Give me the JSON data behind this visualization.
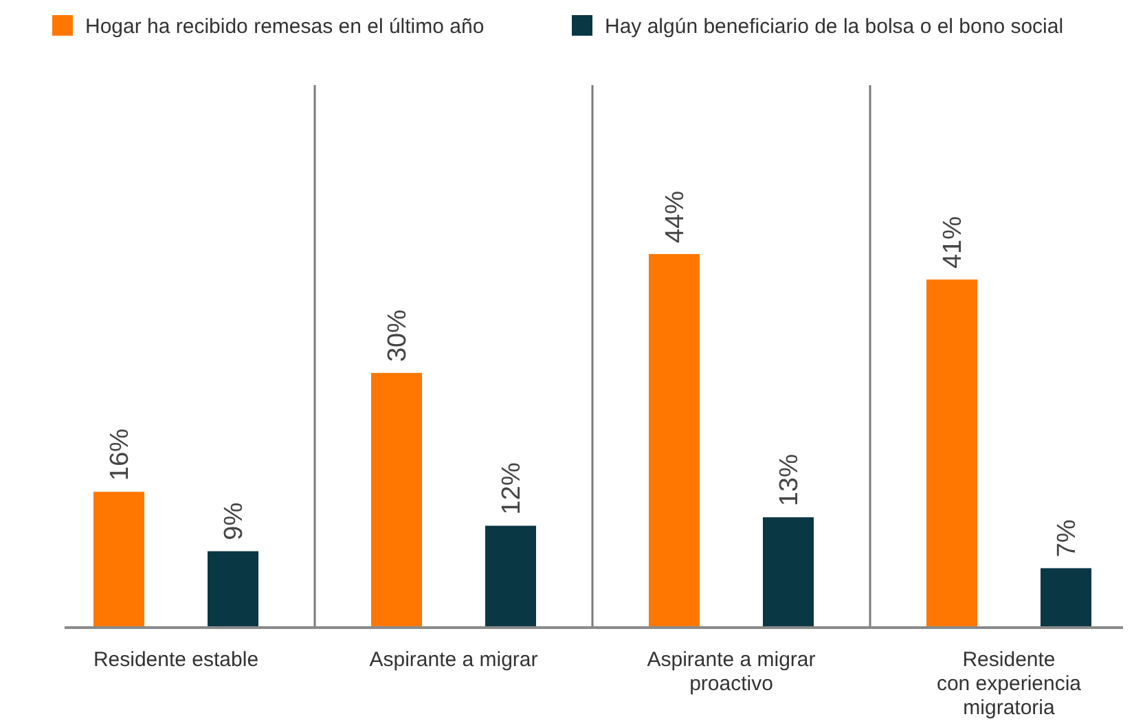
{
  "chart_data": {
    "type": "bar",
    "categories": [
      "Residente estable",
      "Aspirante a migrar",
      "Aspirante a migrar\nproactivo",
      "Residente\ncon experiencia\nmigratoria"
    ],
    "series": [
      {
        "name": "Hogar ha recibido remesas en el último año",
        "color": "#ff7700",
        "values": [
          16,
          30,
          44,
          41
        ],
        "value_labels": [
          "16%",
          "30%",
          "44%",
          "41%"
        ]
      },
      {
        "name": "Hay algún beneficiario de la bolsa o el bono social",
        "color": "#0a3744",
        "values": [
          9,
          12,
          13,
          7
        ],
        "value_labels": [
          "9%",
          "12%",
          "13%",
          "7%"
        ]
      }
    ],
    "tick_labels": "x",
    "grid": "x",
    "legend": "top"
  }
}
